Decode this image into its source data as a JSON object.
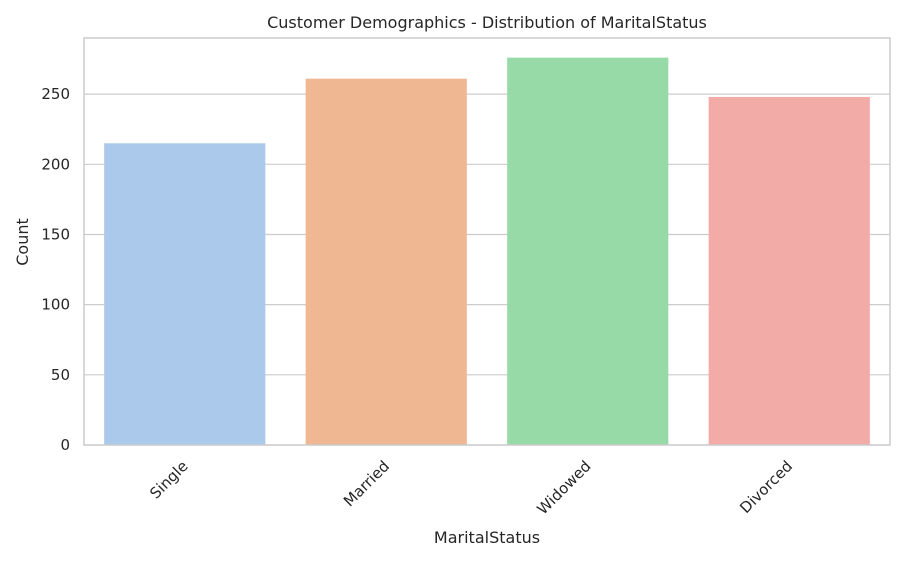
{
  "chart_data": {
    "type": "bar",
    "title": "Customer Demographics - Distribution of MaritalStatus",
    "xlabel": "MaritalStatus",
    "ylabel": "Count",
    "categories": [
      "Single",
      "Married",
      "Widowed",
      "Divorced"
    ],
    "values": [
      215,
      261,
      276,
      248
    ],
    "ylim": [
      0,
      290
    ],
    "yticks": [
      0,
      50,
      100,
      150,
      200,
      250
    ],
    "grid": "horizontal",
    "colors": [
      "#abc9ea",
      "#efb792",
      "#98daa7",
      "#f3aba8"
    ],
    "grid_color": "#cccccc",
    "frame_color": "#cccccc",
    "text_color": "#262626"
  }
}
